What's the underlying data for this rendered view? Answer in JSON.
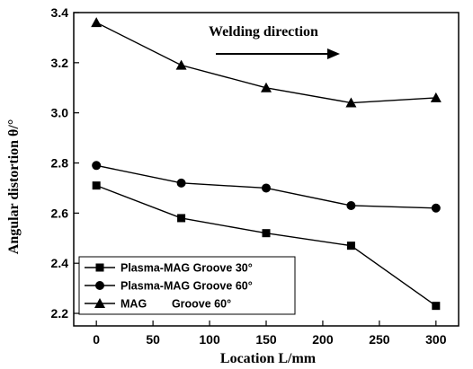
{
  "chart_data": {
    "type": "line",
    "title": "",
    "xlabel": "Location L/mm",
    "ylabel": "Angular distortion θ/°",
    "x": [
      0,
      75,
      150,
      225,
      300
    ],
    "xlim": [
      -20,
      320
    ],
    "ylim": [
      2.15,
      3.4
    ],
    "xticks": [
      0,
      50,
      100,
      150,
      200,
      250,
      300
    ],
    "yticks": [
      2.2,
      2.4,
      2.6,
      2.8,
      3.0,
      3.2,
      3.4
    ],
    "ytick_labels": [
      "2.2",
      "2.4",
      "2.6",
      "2.8",
      "3.0",
      "3.2",
      "3.4"
    ],
    "grid": false,
    "legend_position": "bottom-left",
    "annotation": "Welding direction",
    "series": [
      {
        "name": "Plasma-MAG Groove 30°",
        "marker": "square",
        "values": [
          2.71,
          2.58,
          2.52,
          2.47,
          2.23
        ]
      },
      {
        "name": "Plasma-MAG Groove 60°",
        "marker": "circle",
        "values": [
          2.79,
          2.72,
          2.7,
          2.63,
          2.62
        ]
      },
      {
        "name": "MAG        Groove 60°",
        "marker": "triangle",
        "values": [
          3.36,
          3.19,
          3.1,
          3.04,
          3.06
        ]
      }
    ],
    "colors": {
      "line": "#000000",
      "marker": "#000000"
    }
  }
}
